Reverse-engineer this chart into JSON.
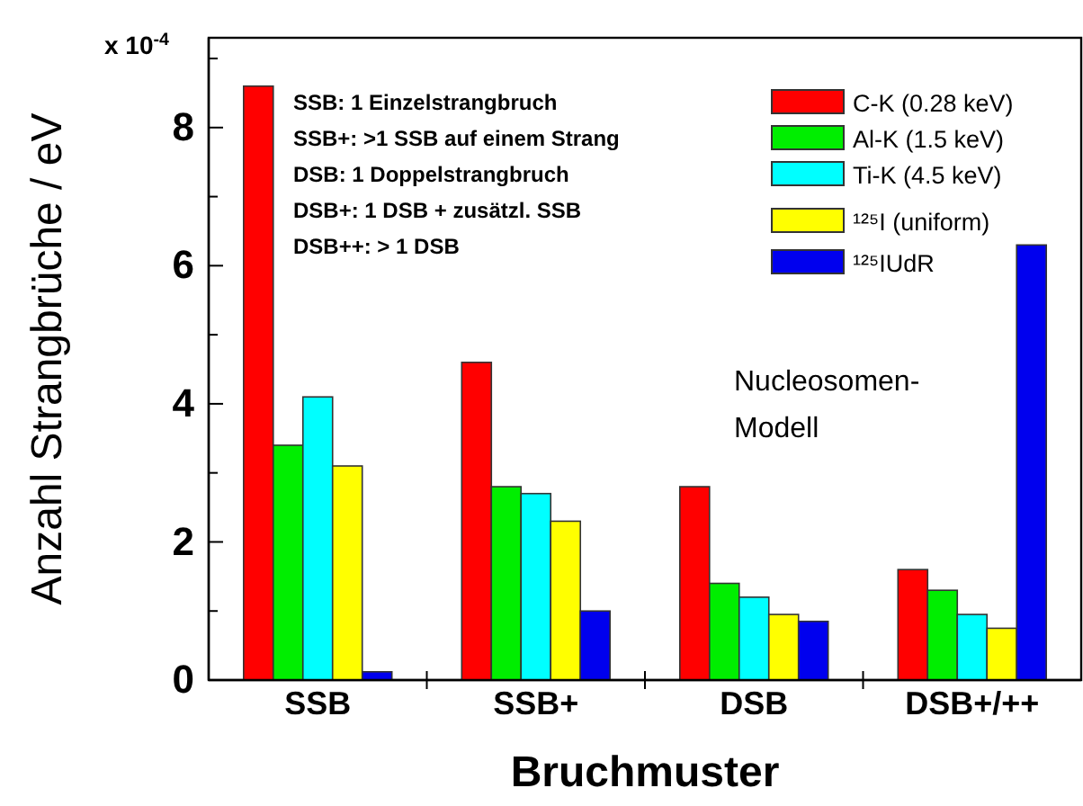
{
  "chart_data": {
    "type": "bar",
    "xlabel": "Bruchmuster",
    "ylabel": "Anzahl Strangbrüche / eV",
    "categories": [
      "SSB",
      "SSB+",
      "DSB",
      "DSB+/++"
    ],
    "series": [
      {
        "name": "C-K (0.28 keV)",
        "color": "#ff0000",
        "values": [
          8.6,
          4.6,
          2.8,
          1.6
        ]
      },
      {
        "name": "Al-K (1.5 keV)",
        "color": "#00ee00",
        "values": [
          3.4,
          2.8,
          1.4,
          1.3
        ]
      },
      {
        "name": "Ti-K (4.5 keV)",
        "color": "#00ffff",
        "values": [
          4.1,
          2.7,
          1.2,
          0.95
        ]
      },
      {
        "name": "¹²⁵I (uniform)",
        "color": "#ffff00",
        "values": [
          3.1,
          2.3,
          0.95,
          0.75
        ]
      },
      {
        "name": "¹²⁵IUdR",
        "color": "#0000ee",
        "values": [
          0.12,
          1.0,
          0.85,
          6.3
        ]
      }
    ],
    "ylim": [
      0,
      9.3
    ],
    "yticks": [
      0,
      {
        "value": 1,
        "label": null
      },
      2,
      {
        "value": 3,
        "label": null
      },
      4,
      {
        "value": 5,
        "label": null
      },
      6,
      {
        "value": 7,
        "label": null
      },
      8,
      {
        "value": 9,
        "label": null
      }
    ],
    "legend": "top right",
    "annotations": [
      "x 10$^{-4}$",
      "SSB: 1 Einzelstrangbruch",
      "SSB+: >1 SSB auf einem Strang",
      "DSB: 1 Doppelstrangbruch",
      "DSB+: 1 DSB + zusätzl. SSB",
      "DSB++: > 1 DSB",
      "Nucleosomen-",
      "Modell"
    ]
  }
}
